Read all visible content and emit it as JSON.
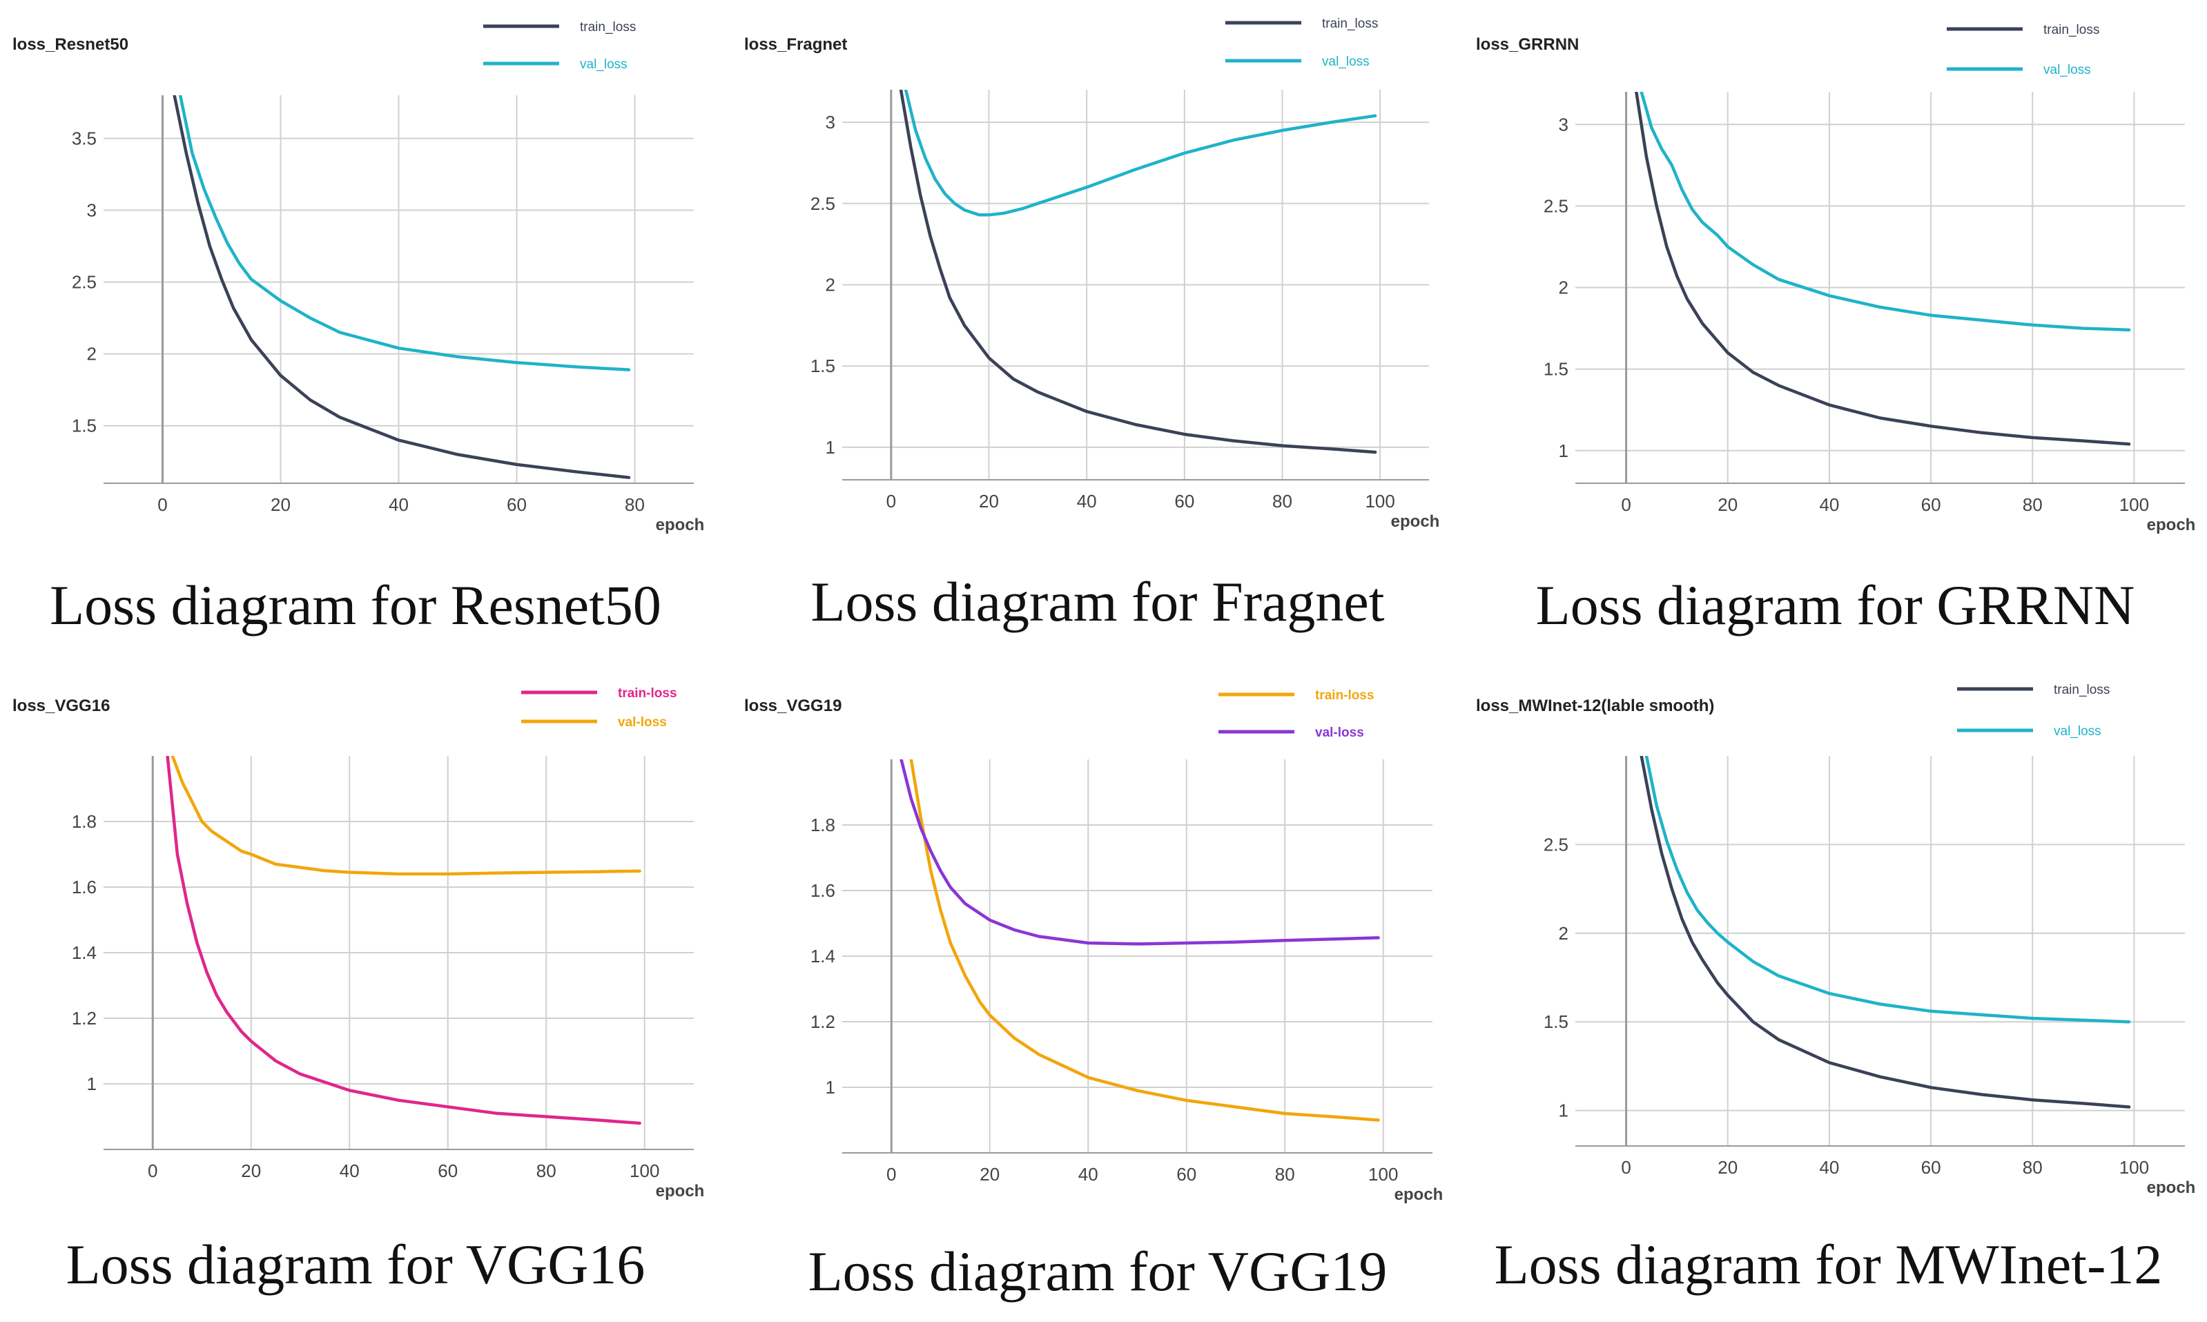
{
  "chart_data": [
    {
      "type": "line",
      "title": "loss_Resnet50",
      "xlabel": "epoch",
      "caption": "Loss diagram for Resnet50",
      "xlim": [
        -10,
        90
      ],
      "ylim": [
        1.1,
        3.8
      ],
      "xticks": [
        0,
        20,
        40,
        60,
        80
      ],
      "yticks": [
        1.5,
        2,
        2.5,
        3,
        3.5
      ],
      "ytick_labels": [
        "1.5",
        "2",
        "2.5",
        "3",
        "3.5"
      ],
      "series": [
        {
          "name": "train_loss",
          "color": "#3b4257",
          "x": [
            2,
            4,
            6,
            8,
            10,
            12,
            15,
            20,
            25,
            30,
            40,
            50,
            60,
            70,
            79
          ],
          "y": [
            3.8,
            3.4,
            3.05,
            2.75,
            2.52,
            2.32,
            2.1,
            1.85,
            1.68,
            1.56,
            1.4,
            1.3,
            1.23,
            1.18,
            1.14
          ]
        },
        {
          "name": "val_loss",
          "color": "#1fb3c9",
          "x": [
            3,
            5,
            7,
            9,
            11,
            13,
            15,
            18,
            20,
            25,
            30,
            40,
            50,
            60,
            70,
            79
          ],
          "y": [
            3.8,
            3.4,
            3.15,
            2.95,
            2.77,
            2.63,
            2.52,
            2.43,
            2.37,
            2.25,
            2.15,
            2.04,
            1.98,
            1.94,
            1.91,
            1.89
          ]
        }
      ]
    },
    {
      "type": "line",
      "title": "loss_Fragnet",
      "xlabel": "epoch",
      "caption": "Loss diagram for Fragnet",
      "xlim": [
        -10,
        110
      ],
      "ylim": [
        0.8,
        3.2
      ],
      "xticks": [
        0,
        20,
        40,
        60,
        80,
        100
      ],
      "yticks": [
        1,
        1.5,
        2,
        2.5,
        3
      ],
      "ytick_labels": [
        "1",
        "1.5",
        "2",
        "2.5",
        "3"
      ],
      "series": [
        {
          "name": "train_loss",
          "color": "#3b4257",
          "x": [
            2,
            4,
            6,
            8,
            10,
            12,
            15,
            20,
            25,
            30,
            40,
            50,
            60,
            70,
            80,
            90,
            99
          ],
          "y": [
            3.2,
            2.85,
            2.55,
            2.3,
            2.1,
            1.92,
            1.75,
            1.55,
            1.42,
            1.34,
            1.22,
            1.14,
            1.08,
            1.04,
            1.01,
            0.99,
            0.97
          ]
        },
        {
          "name": "val_loss",
          "color": "#1fb3c9",
          "x": [
            3,
            5,
            7,
            9,
            11,
            13,
            15,
            18,
            20,
            23,
            27,
            30,
            35,
            40,
            50,
            60,
            70,
            80,
            90,
            99
          ],
          "y": [
            3.2,
            2.95,
            2.78,
            2.65,
            2.56,
            2.5,
            2.46,
            2.43,
            2.43,
            2.44,
            2.47,
            2.5,
            2.55,
            2.6,
            2.71,
            2.81,
            2.89,
            2.95,
            3.0,
            3.04
          ]
        }
      ]
    },
    {
      "type": "line",
      "title": "loss_GRRNN",
      "xlabel": "epoch",
      "caption": "Loss diagram for GRRNN",
      "xlim": [
        -10,
        110
      ],
      "ylim": [
        0.8,
        3.2
      ],
      "xticks": [
        0,
        20,
        40,
        60,
        80,
        100
      ],
      "yticks": [
        1,
        1.5,
        2,
        2.5,
        3
      ],
      "ytick_labels": [
        "1",
        "1.5",
        "2",
        "2.5",
        "3"
      ],
      "series": [
        {
          "name": "train_loss",
          "color": "#3b4257",
          "x": [
            2,
            4,
            6,
            8,
            10,
            12,
            15,
            20,
            25,
            30,
            40,
            50,
            60,
            70,
            80,
            90,
            99
          ],
          "y": [
            3.2,
            2.8,
            2.5,
            2.25,
            2.07,
            1.93,
            1.78,
            1.6,
            1.48,
            1.4,
            1.28,
            1.2,
            1.15,
            1.11,
            1.08,
            1.06,
            1.04
          ]
        },
        {
          "name": "val_loss",
          "color": "#1fb3c9",
          "x": [
            3,
            5,
            7,
            9,
            11,
            13,
            15,
            18,
            20,
            25,
            30,
            40,
            50,
            60,
            70,
            80,
            90,
            99
          ],
          "y": [
            3.2,
            2.98,
            2.85,
            2.75,
            2.6,
            2.48,
            2.4,
            2.32,
            2.25,
            2.14,
            2.05,
            1.95,
            1.88,
            1.83,
            1.8,
            1.77,
            1.75,
            1.74
          ]
        }
      ]
    },
    {
      "type": "line",
      "title": "loss_VGG16",
      "xlabel": "epoch",
      "caption": "Loss diagram for VGG16",
      "xlim": [
        -10,
        110
      ],
      "ylim": [
        0.8,
        2.0
      ],
      "xticks": [
        0,
        20,
        40,
        60,
        80,
        100
      ],
      "yticks": [
        1,
        1.2,
        1.4,
        1.6,
        1.8
      ],
      "ytick_labels": [
        "1",
        "1.2",
        "1.4",
        "1.6",
        "1.8"
      ],
      "series": [
        {
          "name": "train-loss",
          "color": "#e0268c",
          "x": [
            3,
            5,
            7,
            9,
            11,
            13,
            15,
            18,
            20,
            25,
            30,
            40,
            50,
            60,
            70,
            80,
            90,
            99
          ],
          "y": [
            2.0,
            1.7,
            1.55,
            1.43,
            1.34,
            1.27,
            1.22,
            1.16,
            1.13,
            1.07,
            1.03,
            0.98,
            0.95,
            0.93,
            0.91,
            0.9,
            0.89,
            0.88
          ]
        },
        {
          "name": "val-loss",
          "color": "#f2a60c",
          "x": [
            4,
            6,
            8,
            10,
            12,
            15,
            18,
            20,
            25,
            30,
            35,
            40,
            50,
            60,
            70,
            80,
            90,
            99
          ],
          "y": [
            2.0,
            1.92,
            1.86,
            1.8,
            1.77,
            1.74,
            1.71,
            1.7,
            1.67,
            1.66,
            1.65,
            1.645,
            1.64,
            1.64,
            1.643,
            1.645,
            1.647,
            1.649
          ]
        }
      ]
    },
    {
      "type": "line",
      "title": "loss_VGG19",
      "xlabel": "epoch",
      "caption": "Loss diagram for VGG19",
      "xlim": [
        -10,
        110
      ],
      "ylim": [
        0.8,
        2.0
      ],
      "xticks": [
        0,
        20,
        40,
        60,
        80,
        100
      ],
      "yticks": [
        1,
        1.2,
        1.4,
        1.6,
        1.8
      ],
      "ytick_labels": [
        "1",
        "1.2",
        "1.4",
        "1.6",
        "1.8"
      ],
      "series": [
        {
          "name": "train-loss",
          "color": "#f2a60c",
          "x": [
            4,
            6,
            8,
            10,
            12,
            15,
            18,
            20,
            25,
            30,
            40,
            50,
            60,
            70,
            80,
            90,
            99
          ],
          "y": [
            2.0,
            1.82,
            1.66,
            1.54,
            1.44,
            1.34,
            1.26,
            1.22,
            1.15,
            1.1,
            1.03,
            0.99,
            0.96,
            0.94,
            0.92,
            0.91,
            0.9
          ]
        },
        {
          "name": "val-loss",
          "color": "#8a36d6",
          "x": [
            2,
            4,
            6,
            8,
            10,
            12,
            15,
            18,
            20,
            25,
            30,
            40,
            50,
            60,
            70,
            80,
            90,
            99
          ],
          "y": [
            2.0,
            1.88,
            1.79,
            1.72,
            1.66,
            1.61,
            1.56,
            1.53,
            1.51,
            1.48,
            1.46,
            1.44,
            1.437,
            1.44,
            1.443,
            1.448,
            1.452,
            1.456
          ]
        }
      ]
    },
    {
      "type": "line",
      "title": "loss_MWInet-12(lable smooth)",
      "xlabel": "epoch",
      "caption": "Loss diagram for MWInet-12",
      "xlim": [
        -10,
        110
      ],
      "ylim": [
        0.8,
        3.0
      ],
      "xticks": [
        0,
        20,
        40,
        60,
        80,
        100
      ],
      "yticks": [
        1,
        1.5,
        2,
        2.5
      ],
      "ytick_labels": [
        "1",
        "1.5",
        "2",
        "2.5"
      ],
      "series": [
        {
          "name": "train_loss",
          "color": "#3b4257",
          "x": [
            3,
            5,
            7,
            9,
            11,
            13,
            15,
            18,
            20,
            25,
            30,
            40,
            50,
            60,
            70,
            80,
            90,
            99
          ],
          "y": [
            3.0,
            2.7,
            2.45,
            2.25,
            2.08,
            1.95,
            1.85,
            1.72,
            1.65,
            1.5,
            1.4,
            1.27,
            1.19,
            1.13,
            1.09,
            1.06,
            1.04,
            1.02
          ]
        },
        {
          "name": "val_loss",
          "color": "#1fb3c9",
          "x": [
            4,
            6,
            8,
            10,
            12,
            14,
            16,
            18,
            20,
            25,
            30,
            40,
            50,
            60,
            70,
            80,
            90,
            99
          ],
          "y": [
            3.0,
            2.72,
            2.52,
            2.36,
            2.23,
            2.13,
            2.06,
            2.0,
            1.95,
            1.84,
            1.76,
            1.66,
            1.6,
            1.56,
            1.54,
            1.52,
            1.51,
            1.5
          ]
        }
      ]
    }
  ]
}
